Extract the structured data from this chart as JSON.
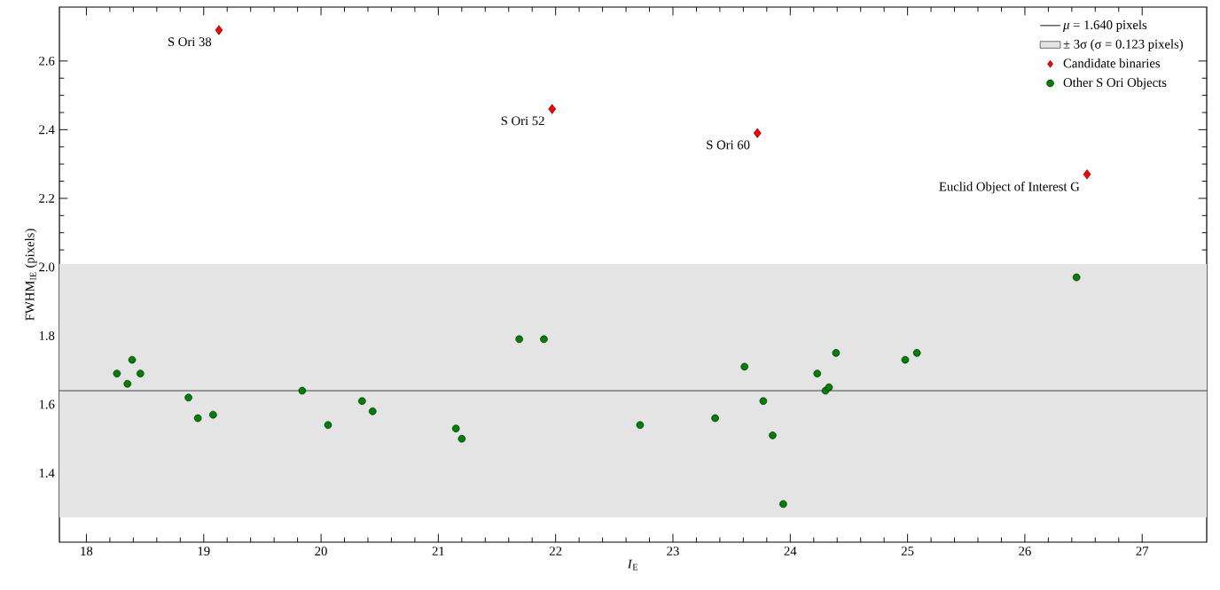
{
  "chart_data": {
    "type": "scatter",
    "xlabel": "*I*$_{E}$",
    "ylabel": "FWHM$_{IE}$ (pixels)",
    "xlim": [
      17.77,
      27.55
    ],
    "ylim": [
      1.199,
      2.757
    ],
    "xticks": [
      18,
      19,
      20,
      21,
      22,
      23,
      24,
      25,
      26,
      27
    ],
    "yticks": [
      1.4,
      1.6,
      1.8,
      {
        "value": 2.0,
        "label": "2.0"
      },
      2.2,
      2.4,
      2.6
    ],
    "grid": false,
    "legend": "top right",
    "ref_lines": [
      {
        "axis": "y",
        "value": 1.64,
        "label": "*μ* = 1.640 pixels",
        "color": "#000000",
        "line_style": "solid"
      }
    ],
    "bands": [
      {
        "axis": "y",
        "from": 1.271,
        "to": 2.009,
        "label": "± 3σ (σ = 0.123 pixels)",
        "color": "#e4e4e4"
      }
    ],
    "series": [
      {
        "name": "Candidate binaries",
        "color": "#ff0000",
        "marker": "diamond",
        "x": [
          19.13,
          21.97,
          23.72,
          26.53
        ],
        "values": [
          2.69,
          2.46,
          2.39,
          2.27
        ]
      },
      {
        "name": "Other S Ori Objects",
        "color": "#008000",
        "marker": "circle",
        "x": [
          18.26,
          18.35,
          18.39,
          18.46,
          18.87,
          18.95,
          19.08,
          19.84,
          20.06,
          20.35,
          20.44,
          21.15,
          21.2,
          21.69,
          21.9,
          22.72,
          23.36,
          23.61,
          23.77,
          23.85,
          23.94,
          24.23,
          24.3,
          24.33,
          24.39,
          24.98,
          25.08,
          26.44
        ],
        "values": [
          1.69,
          1.66,
          1.73,
          1.69,
          1.62,
          1.56,
          1.57,
          1.64,
          1.54,
          1.61,
          1.58,
          1.53,
          1.5,
          1.79,
          1.79,
          1.54,
          1.56,
          1.71,
          1.61,
          1.51,
          1.31,
          1.69,
          1.64,
          1.65,
          1.75,
          1.73,
          1.75,
          1.97
        ]
      }
    ],
    "annotations": [
      {
        "text": "S Ori 38",
        "x": 19.13,
        "y": 2.69
      },
      {
        "text": "S Ori 52",
        "x": 21.97,
        "y": 2.46
      },
      {
        "text": "S Ori 60",
        "x": 23.72,
        "y": 2.39
      },
      {
        "text": "Euclid Object of Interest G",
        "x": 26.53,
        "y": 2.27
      }
    ]
  }
}
